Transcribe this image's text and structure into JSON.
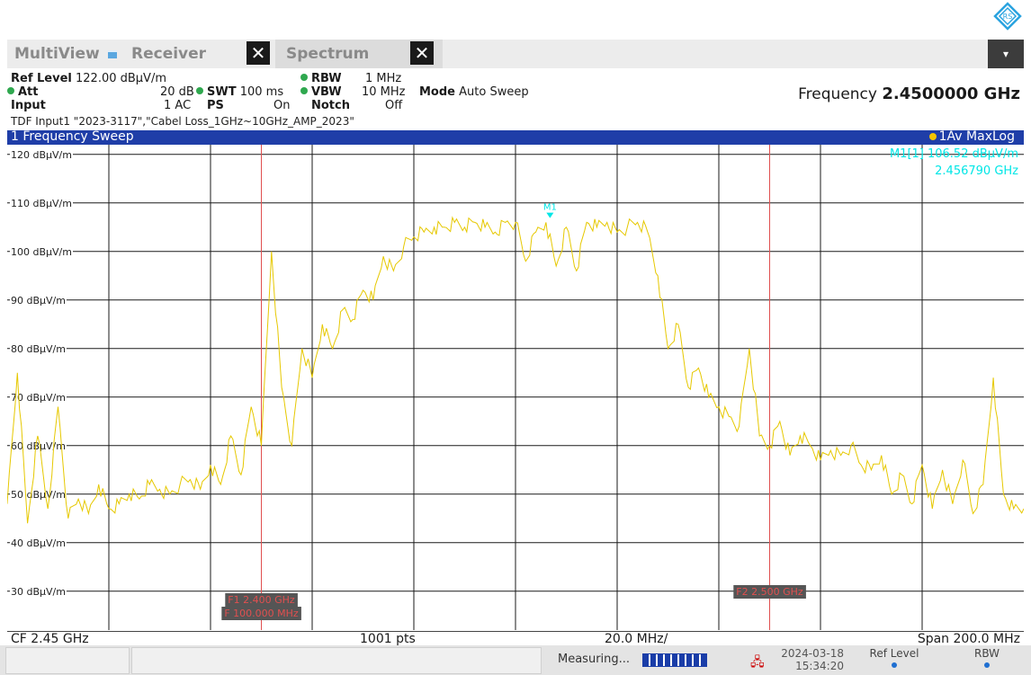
{
  "tabs": {
    "multiview": "MultiView",
    "receiver": "Receiver",
    "spectrum": "Spectrum",
    "close_glyph": "✕",
    "dropdown_glyph": "▾"
  },
  "params": {
    "ref_level_label": "Ref Level",
    "ref_level_value": "122.00 dBµV/m",
    "att_label": "Att",
    "att_value": "20 dB",
    "input_label": "Input",
    "input_value": "1 AC",
    "swt_label": "SWT",
    "swt_value": "100 ms",
    "ps_label": "PS",
    "ps_value": "On",
    "rbw_label": "RBW",
    "rbw_value": "1 MHz",
    "vbw_label": "VBW",
    "vbw_value": "10 MHz",
    "notch_label": "Notch",
    "notch_value": "Off",
    "mode_label": "Mode",
    "mode_value": "Auto Sweep",
    "frequency_label": "Frequency",
    "frequency_value": "2.4500000 GHz",
    "tdf_line": "TDF Input1 \"2023-3117\",\"Cabel Loss_1GHz~10GHz_AMP_2023\""
  },
  "diagram": {
    "title": "1 Frequency Sweep",
    "trace_label": "1Av MaxLog",
    "marker_readout_1": "M1[1] 106.52 dBµV/m",
    "marker_readout_2": "2.456790 GHz",
    "marker_name": "M1",
    "limit_box_left_1": "F1 2.400 GHz",
    "limit_box_left_2": "F 100.000 MHz",
    "limit_box_right": "F2 2.500 GHz"
  },
  "footer": {
    "cf": "CF 2.45 GHz",
    "pts": "1001 pts",
    "div": "20.0 MHz/",
    "span": "Span 200.0 MHz"
  },
  "status": {
    "measuring": "Measuring...",
    "date": "2024-03-18",
    "time": "15:34:20",
    "ref_level": "Ref Level",
    "rbw": "RBW"
  },
  "colors": {
    "trace": "#e6c800",
    "marker": "#00e6e6",
    "limit_line": "#e05050",
    "header_blue": "#1f3ea8"
  },
  "chart_data": {
    "type": "line",
    "x_unit": "GHz",
    "y_unit": "dBµV/m",
    "xlim": [
      2.35,
      2.55
    ],
    "ylim": [
      22,
      122
    ],
    "y_ticks": [
      "120 dBµV/m",
      "110 dBµV/m",
      "100 dBµV/m",
      "90 dBµV/m",
      "80 dBµV/m",
      "70 dBµV/m",
      "60 dBµV/m",
      "50 dBµV/m",
      "40 dBµV/m",
      "30 dBµV/m"
    ],
    "y_tick_values": [
      120,
      110,
      100,
      90,
      80,
      70,
      60,
      50,
      40,
      30
    ],
    "vertical_lines_GHz": [
      2.4,
      2.5
    ],
    "marker": {
      "name": "M1",
      "x": 2.45679,
      "y": 106.52
    },
    "series": [
      {
        "x": [
          2.35,
          2.352,
          2.354,
          2.356,
          2.358,
          2.36,
          2.362,
          2.364,
          2.366,
          2.368,
          2.37,
          2.372,
          2.374,
          2.376,
          2.378,
          2.38,
          2.382,
          2.384,
          2.386,
          2.388,
          2.39,
          2.392,
          2.394,
          2.396,
          2.398,
          2.4,
          2.402,
          2.404,
          2.406,
          2.408,
          2.41,
          2.412,
          2.414,
          2.416,
          2.418,
          2.42,
          2.422,
          2.424,
          2.426,
          2.428,
          2.43,
          2.432,
          2.434,
          2.436,
          2.438,
          2.44,
          2.442,
          2.444,
          2.446,
          2.448,
          2.45,
          2.452,
          2.454,
          2.456,
          2.458,
          2.46,
          2.462,
          2.464,
          2.466,
          2.468,
          2.47,
          2.472,
          2.474,
          2.476,
          2.478,
          2.48,
          2.482,
          2.484,
          2.486,
          2.488,
          2.49,
          2.492,
          2.494,
          2.496,
          2.498,
          2.5,
          2.502,
          2.504,
          2.506,
          2.508,
          2.51,
          2.512,
          2.514,
          2.516,
          2.518,
          2.52,
          2.522,
          2.524,
          2.526,
          2.528,
          2.53,
          2.532,
          2.534,
          2.536,
          2.538,
          2.54,
          2.542,
          2.544,
          2.546,
          2.548,
          2.55
        ],
        "y": [
          48,
          75,
          44,
          62,
          47,
          68,
          45,
          49,
          46,
          52,
          47,
          48,
          50,
          49,
          52,
          51,
          50,
          52,
          53,
          51,
          56,
          52,
          62,
          54,
          68,
          60,
          100,
          72,
          60,
          80,
          74,
          85,
          80,
          88,
          86,
          92,
          90,
          99,
          96,
          101,
          103,
          104,
          105,
          105,
          106,
          105,
          106,
          105,
          104,
          106,
          106,
          98,
          104,
          106,
          97,
          105,
          96,
          106,
          105,
          106,
          104,
          105,
          106,
          104,
          95,
          80,
          85,
          72,
          76,
          70,
          68,
          66,
          64,
          80,
          62,
          60,
          65,
          58,
          62,
          60,
          57,
          59,
          58,
          60,
          56,
          55,
          58,
          50,
          54,
          48,
          56,
          47,
          55,
          48,
          57,
          46,
          52,
          74,
          50,
          47,
          47
        ]
      }
    ]
  }
}
